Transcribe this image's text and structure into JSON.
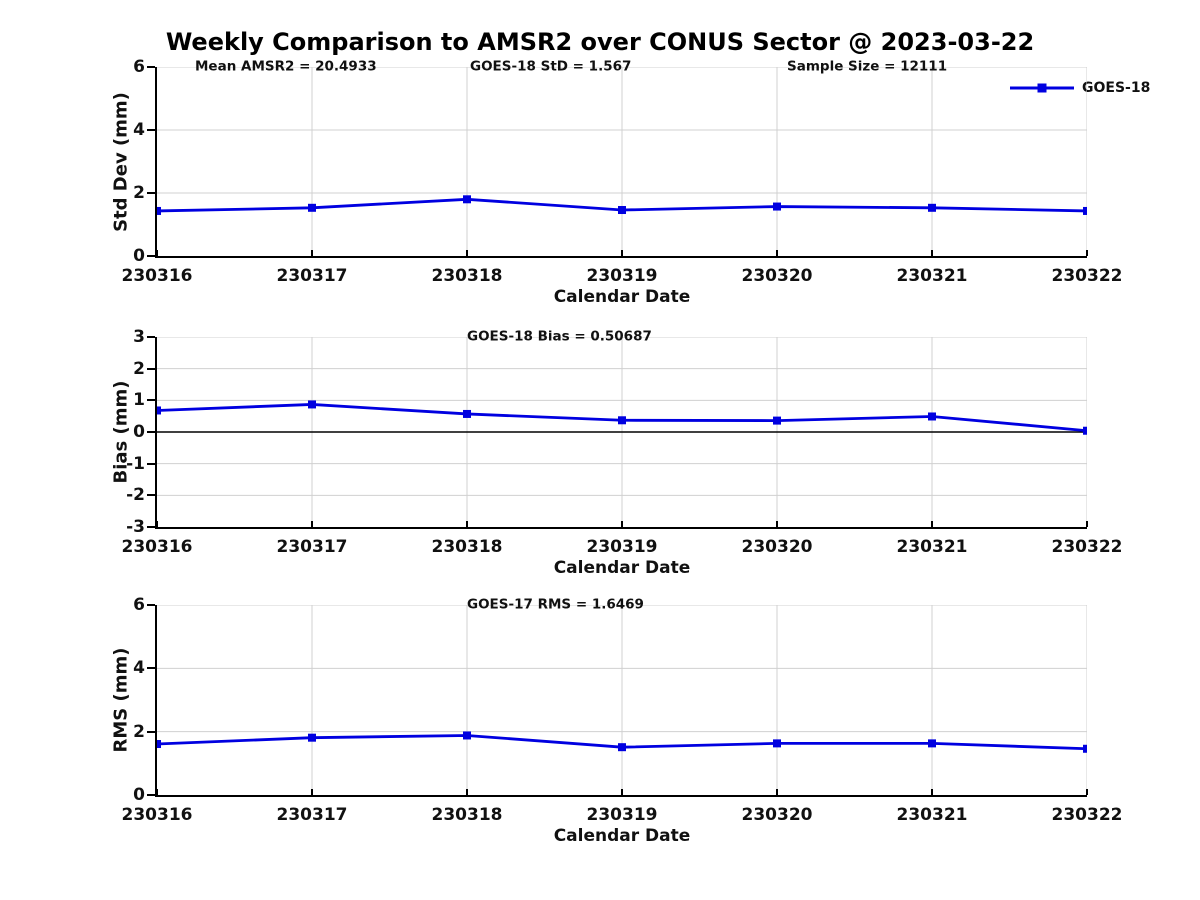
{
  "title": "Weekly Comparison to AMSR2 over CONUS Sector @ 2023-03-22",
  "legend": {
    "label": "GOES-18"
  },
  "chart_data": {
    "type": "line",
    "x_categories": [
      "230316",
      "230317",
      "230318",
      "230319",
      "230320",
      "230321",
      "230322"
    ],
    "xlabel": "Calendar Date",
    "grid": true,
    "legend_position": "top-right-outside",
    "colors": {
      "line": "#0000e0",
      "grid": "#d0d0d0",
      "axis": "#000000",
      "zero_line": "#000000",
      "text": "#111111"
    },
    "marker": "square",
    "panels": [
      {
        "name": "std-dev",
        "ylabel": "Std Dev (mm)",
        "xlabel": "Calendar Date",
        "ylim": [
          0,
          6
        ],
        "yticks": [
          0,
          2,
          4,
          6
        ],
        "zero_line": false,
        "annotations": [
          "Mean AMSR2 = 20.4933",
          "GOES-18 StD = 1.567",
          "Sample Size = 12111"
        ],
        "series": [
          {
            "name": "GOES-18",
            "values": [
              1.43,
              1.53,
              1.8,
              1.46,
              1.57,
              1.53,
              1.43
            ]
          }
        ]
      },
      {
        "name": "bias",
        "ylabel": "Bias (mm)",
        "xlabel": "Calendar Date",
        "ylim": [
          -3,
          3
        ],
        "yticks": [
          3,
          2,
          1,
          0,
          -1,
          -2,
          -3
        ],
        "zero_line": true,
        "annotations": [
          "GOES-18 Bias  = 0.50687"
        ],
        "series": [
          {
            "name": "GOES-18",
            "values": [
              0.68,
              0.87,
              0.57,
              0.37,
              0.36,
              0.49,
              0.04
            ]
          }
        ]
      },
      {
        "name": "rms",
        "ylabel": "RMS (mm)",
        "xlabel": "Calendar Date",
        "ylim": [
          0,
          6
        ],
        "yticks": [
          0,
          2,
          4,
          6
        ],
        "zero_line": false,
        "annotations": [
          "GOES-17 RMS = 1.6469"
        ],
        "series": [
          {
            "name": "GOES-17",
            "values": [
              1.61,
              1.81,
              1.88,
              1.51,
              1.63,
              1.63,
              1.46
            ]
          }
        ]
      }
    ]
  }
}
